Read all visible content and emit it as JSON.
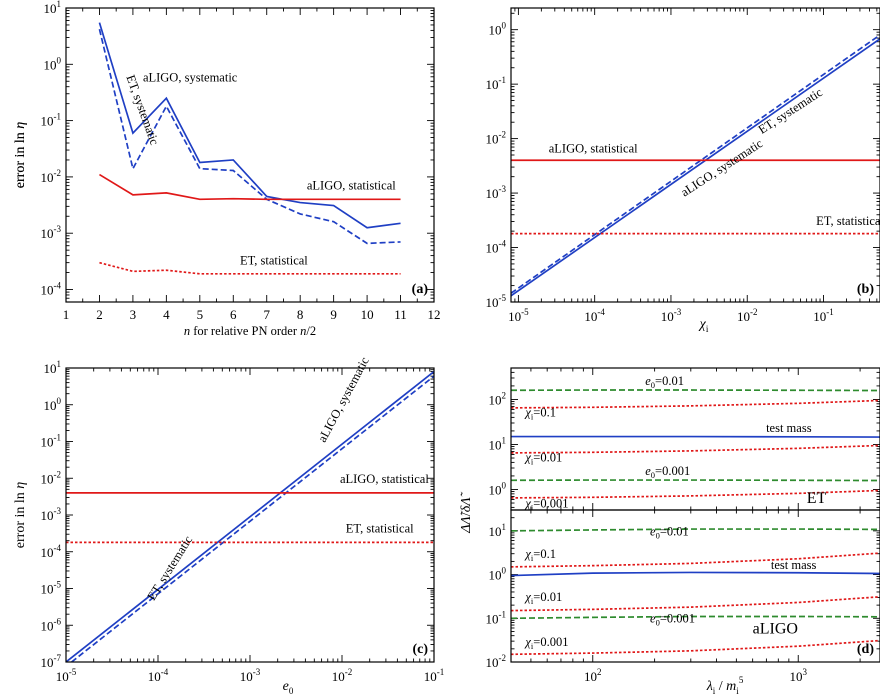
{
  "colors": {
    "blue": "#1f3fc4",
    "red": "#e01818",
    "green": "#2e8b2e"
  },
  "chart_data": [
    {
      "id": "a",
      "type": "line",
      "panel_label": "(a)",
      "xlabel_parts": [
        "n",
        " for relative PN order ",
        "n",
        "/2"
      ],
      "ylabel_parts": [
        "error in ln ",
        "η"
      ],
      "xscale": "linear",
      "yscale": "log",
      "xlim": [
        1,
        12
      ],
      "ylim": [
        6e-05,
        10
      ],
      "xticks": [
        1,
        2,
        3,
        4,
        5,
        6,
        7,
        8,
        9,
        10,
        11,
        12
      ],
      "xtick_labels": [
        "1",
        "2",
        "3",
        "4",
        "5",
        "6",
        "7",
        "8",
        "9",
        "10",
        "11",
        "12"
      ],
      "yticks_exp": [
        -4,
        -3,
        -2,
        -1,
        0,
        1
      ],
      "series": [
        {
          "color": "blue",
          "dash": "solid",
          "x": [
            2,
            3,
            4,
            5,
            6,
            7,
            8,
            9,
            10,
            11
          ],
          "y": [
            5.5,
            0.06,
            0.25,
            0.018,
            0.02,
            0.0045,
            0.0035,
            0.0031,
            0.00125,
            0.0015
          ]
        },
        {
          "color": "blue",
          "dash": "dashed",
          "x": [
            2,
            3,
            4,
            5,
            6,
            7,
            8,
            9,
            10,
            11
          ],
          "y": [
            4.2,
            0.014,
            0.18,
            0.014,
            0.013,
            0.004,
            0.0022,
            0.0016,
            0.00066,
            0.0007
          ]
        },
        {
          "color": "red",
          "dash": "solid",
          "x": [
            2,
            3,
            4,
            5,
            6,
            7,
            8,
            9,
            10,
            11
          ],
          "y": [
            0.011,
            0.0048,
            0.0052,
            0.004,
            0.0041,
            0.004,
            0.004,
            0.004,
            0.004,
            0.004
          ]
        },
        {
          "color": "red",
          "dash": "dotted",
          "x": [
            2,
            3,
            4,
            5,
            6,
            7,
            8,
            9,
            10,
            11
          ],
          "y": [
            0.0003,
            0.00021,
            0.00022,
            0.00019,
            0.00019,
            0.00019,
            0.00019,
            0.00019,
            0.00019,
            0.00019
          ]
        }
      ],
      "annotations": [
        {
          "text": "aLIGO, systematic",
          "x": 3.3,
          "y": 0.5,
          "rotate": 0
        },
        {
          "text": "ET, systematic",
          "x": 2.8,
          "y": 0.6,
          "rotate": 70
        },
        {
          "text": "aLIGO, statistical",
          "x": 8.2,
          "y": 0.006,
          "rotate": 0
        },
        {
          "text": "ET, statistical",
          "x": 6.2,
          "y": 0.00028,
          "rotate": 0
        }
      ]
    },
    {
      "id": "b",
      "type": "line",
      "panel_label": "(b)",
      "xlabel_parts": [
        "χ",
        "i"
      ],
      "ylabel_parts": [
        "error in ln ",
        "η"
      ],
      "xscale": "log",
      "yscale": "log",
      "xlim": [
        8e-06,
        0.55
      ],
      "ylim": [
        1e-05,
        2.5
      ],
      "xticks_exp": [
        -5,
        -4,
        -3,
        -2,
        -1
      ],
      "yticks_exp": [
        -5,
        -4,
        -3,
        -2,
        -1,
        0
      ],
      "series": [
        {
          "color": "blue",
          "dash": "solid",
          "x": [
            8e-06,
            0.55
          ],
          "y": [
            1.3e-05,
            0.68
          ]
        },
        {
          "color": "blue",
          "dash": "dashed",
          "x": [
            8e-06,
            0.55
          ],
          "y": [
            1.45e-05,
            0.8
          ]
        },
        {
          "color": "red",
          "dash": "solid",
          "x": [
            8e-06,
            0.55
          ],
          "y": [
            0.004,
            0.004
          ]
        },
        {
          "color": "red",
          "dash": "dotted",
          "x": [
            8e-06,
            0.55
          ],
          "y": [
            0.00018,
            0.00018
          ]
        }
      ],
      "annotations": [
        {
          "text": "ET, systematic",
          "x": 0.0155,
          "y": 0.012,
          "rotate": -33
        },
        {
          "text": "aLIGO, systematic",
          "x": 0.0015,
          "y": 0.00085,
          "rotate": -33
        },
        {
          "text": "aLIGO, statistical",
          "x": 2.5e-05,
          "y": 0.0055,
          "rotate": 0
        },
        {
          "text": "ET, statistical",
          "x": 0.08,
          "y": 0.00026,
          "rotate": 0
        }
      ]
    },
    {
      "id": "c",
      "type": "line",
      "panel_label": "(c)",
      "xlabel_parts": [
        "e",
        "0"
      ],
      "ylabel_parts": [
        "error in ln ",
        "η"
      ],
      "xscale": "log",
      "yscale": "log",
      "xlim": [
        1e-05,
        0.1
      ],
      "ylim": [
        1e-07,
        10
      ],
      "xticks_exp": [
        -5,
        -4,
        -3,
        -2,
        -1
      ],
      "yticks_exp": [
        -7,
        -6,
        -5,
        -4,
        -3,
        -2,
        -1,
        0,
        1
      ],
      "series": [
        {
          "color": "blue",
          "dash": "solid",
          "x": [
            1e-05,
            0.1
          ],
          "y": [
            1e-07,
            8
          ]
        },
        {
          "color": "blue",
          "dash": "dashed",
          "x": [
            1.15e-05,
            0.1
          ],
          "y": [
            1e-07,
            6
          ]
        },
        {
          "color": "red",
          "dash": "solid",
          "x": [
            1e-05,
            0.1
          ],
          "y": [
            0.004,
            0.004
          ]
        },
        {
          "color": "red",
          "dash": "dotted",
          "x": [
            1e-05,
            0.1
          ],
          "y": [
            0.00018,
            0.00018
          ]
        }
      ],
      "annotations": [
        {
          "text": "aLIGO, systematic",
          "x": 0.0065,
          "y": 0.09,
          "rotate": -62
        },
        {
          "text": "ET, systematic",
          "x": 9e-05,
          "y": 4.5e-06,
          "rotate": -58
        },
        {
          "text": "aLIGO, statistical",
          "x": 0.0095,
          "y": 0.0075,
          "rotate": 0
        },
        {
          "text": "ET, statistical",
          "x": 0.011,
          "y": 0.00033,
          "rotate": 0
        }
      ]
    },
    {
      "id": "d",
      "type": "line",
      "panel_label": "(d)",
      "xlabel_parts": [
        "λ",
        "i",
        " / ",
        "m",
        "i",
        "5"
      ],
      "ylabel_parts": [
        "ΔΛ̃",
        "/",
        "δΛ̃"
      ],
      "xscale": "log",
      "yscale": "log",
      "xlim": [
        40,
        2500
      ],
      "xticks_exp": [
        2,
        3
      ],
      "subpanels": [
        {
          "name": "ET",
          "ylim": [
            0.35,
            500
          ],
          "yticks_exp": [
            0,
            1,
            2
          ],
          "series": [
            {
              "color": "green",
              "dash": "dashed",
              "x": [
                40,
                100,
                300,
                1000,
                2500
              ],
              "y": [
                160,
                162,
                162,
                160,
                158
              ]
            },
            {
              "color": "red",
              "dash": "dotted",
              "x": [
                40,
                100,
                300,
                1000,
                2500
              ],
              "y": [
                65,
                67,
                72,
                82,
                95
              ]
            },
            {
              "color": "blue",
              "dash": "solid",
              "x": [
                40,
                100,
                300,
                1000,
                2500
              ],
              "y": [
                15,
                15,
                15,
                14.8,
                14.6
              ]
            },
            {
              "color": "red",
              "dash": "dotted",
              "x": [
                40,
                100,
                300,
                1000,
                2500
              ],
              "y": [
                6.5,
                6.7,
                7.2,
                8.2,
                9.5
              ]
            },
            {
              "color": "green",
              "dash": "dashed",
              "x": [
                40,
                100,
                300,
                1000,
                2500
              ],
              "y": [
                1.6,
                1.62,
                1.62,
                1.6,
                1.58
              ]
            },
            {
              "color": "red",
              "dash": "dotted",
              "x": [
                40,
                100,
                300,
                1000,
                2500
              ],
              "y": [
                0.65,
                0.67,
                0.72,
                0.82,
                0.95
              ]
            }
          ],
          "annotations": [
            {
              "parts": [
                "e",
                "0",
                "=0.01"
              ],
              "kind": "sub",
              "x": 180,
              "y": 210
            },
            {
              "parts": [
                "χ",
                "i",
                "=0.1"
              ],
              "kind": "sub",
              "x": 47,
              "y": 42
            },
            {
              "parts": [
                "test mass"
              ],
              "kind": "plain",
              "x": 900,
              "y": 19
            },
            {
              "parts": [
                "χ",
                "i",
                "=0.01"
              ],
              "kind": "sub",
              "x": 47,
              "y": 4.2
            },
            {
              "parts": [
                "e",
                "0",
                "=0.001"
              ],
              "kind": "sub",
              "x": 180,
              "y": 2.1
            },
            {
              "parts": [
                "χ",
                "i",
                "=0.001"
              ],
              "kind": "sub",
              "x": 47,
              "y": 0.4
            },
            {
              "parts": [
                "ET"
              ],
              "kind": "big",
              "x": 1100,
              "y": 0.5
            }
          ]
        },
        {
          "name": "aLIGO",
          "ylim": [
            0.01,
            30
          ],
          "yticks_exp": [
            -2,
            -1,
            0,
            1
          ],
          "series": [
            {
              "color": "green",
              "dash": "dashed",
              "x": [
                40,
                100,
                300,
                1000,
                2500
              ],
              "y": [
                10,
                10.5,
                11,
                11,
                10.8
              ]
            },
            {
              "color": "red",
              "dash": "dotted",
              "x": [
                40,
                100,
                300,
                1000,
                2500
              ],
              "y": [
                1.5,
                1.6,
                1.8,
                2.3,
                3.1
              ]
            },
            {
              "color": "blue",
              "dash": "solid",
              "x": [
                40,
                100,
                300,
                1000,
                2500
              ],
              "y": [
                0.95,
                1.08,
                1.12,
                1.1,
                1.06
              ]
            },
            {
              "color": "red",
              "dash": "dotted",
              "x": [
                40,
                100,
                300,
                1000,
                2500
              ],
              "y": [
                0.15,
                0.16,
                0.18,
                0.23,
                0.31
              ]
            },
            {
              "color": "green",
              "dash": "dashed",
              "x": [
                40,
                100,
                300,
                1000,
                2500
              ],
              "y": [
                0.1,
                0.105,
                0.11,
                0.11,
                0.108
              ]
            },
            {
              "color": "red",
              "dash": "dotted",
              "x": [
                40,
                100,
                300,
                1000,
                2500
              ],
              "y": [
                0.015,
                0.016,
                0.018,
                0.023,
                0.031
              ]
            }
          ],
          "annotations": [
            {
              "parts": [
                "e",
                "0",
                "=0.01"
              ],
              "kind": "sub",
              "x": 190,
              "y": 7.8
            },
            {
              "parts": [
                "χ",
                "i",
                "=0.1"
              ],
              "kind": "sub",
              "x": 47,
              "y": 2.4
            },
            {
              "parts": [
                "test mass"
              ],
              "kind": "plain",
              "x": 950,
              "y": 1.35
            },
            {
              "parts": [
                "χ",
                "i",
                "=0.01"
              ],
              "kind": "sub",
              "x": 47,
              "y": 0.25
            },
            {
              "parts": [
                "e",
                "0",
                "=0.001"
              ],
              "kind": "sub",
              "x": 190,
              "y": 0.08
            },
            {
              "parts": [
                "χ",
                "i",
                "=0.001"
              ],
              "kind": "sub",
              "x": 47,
              "y": 0.023
            },
            {
              "parts": [
                "aLIGO"
              ],
              "kind": "big",
              "x": 600,
              "y": 0.045
            }
          ]
        }
      ]
    }
  ]
}
